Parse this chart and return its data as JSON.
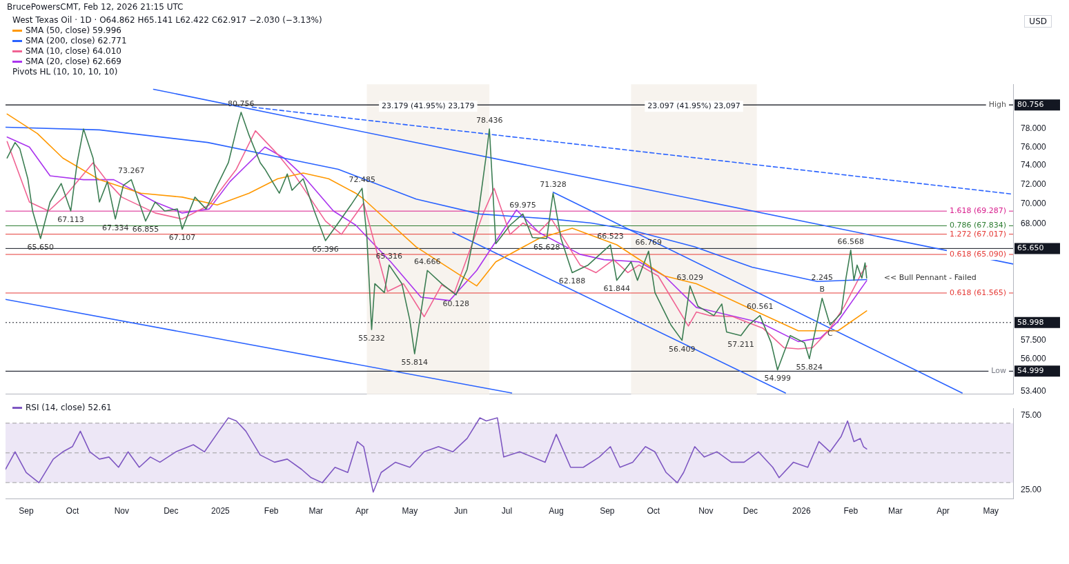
{
  "chart_data": [
    {
      "type": "line",
      "title": "West Texas Oil · 1D · O64.862 H65.141 L62.422 C62.917 −2.030 (−3.13%)",
      "subtitle": "BrucePowersCMT, Feb 12, 2026 21:15 UTC",
      "ylabel": "USD",
      "log": "y",
      "legend": "top left",
      "tick_labels": "y",
      "xlim": [
        "2024-08-20",
        "2026-05-15"
      ],
      "ylim": [
        53.2,
        83.2
      ],
      "yticks": [
        {
          "value": 53.4,
          "label": "53.400"
        },
        {
          "value": 56,
          "label": "56.000"
        },
        {
          "value": 57.5,
          "label": "57.500"
        },
        {
          "value": 68,
          "label": "68.000"
        },
        {
          "value": 70,
          "label": "70.000"
        },
        {
          "value": 72,
          "label": "72.000"
        },
        {
          "value": 74,
          "label": "74.000"
        },
        {
          "value": 76,
          "label": "76.000"
        },
        {
          "value": 78,
          "label": "78.000"
        }
      ],
      "series": [
        {
          "color": "#3b7d52",
          "x": [
            "2024-08-21",
            "2024-08-26",
            "2024-08-29",
            "2024-09-03",
            "2024-09-06",
            "2024-09-11",
            "2024-09-17",
            "2024-09-24",
            "2024-09-30",
            "2024-10-04",
            "2024-10-08",
            "2024-10-14",
            "2024-10-18",
            "2024-10-23",
            "2024-10-28",
            "2024-11-02",
            "2024-11-07",
            "2024-11-16",
            "2024-11-22",
            "2024-11-28",
            "2024-12-06",
            "2024-12-09",
            "2024-12-17",
            "2024-12-24",
            "2024-12-31",
            "2025-01-07",
            "2025-01-13",
            "2025-01-15",
            "2025-01-20",
            "2025-01-27",
            "2025-01-30",
            "2025-02-08",
            "2025-02-13",
            "2025-02-16",
            "2025-02-23",
            "2025-03-02",
            "2025-03-09",
            "2025-03-17",
            "2025-03-25",
            "2025-04-01",
            "2025-04-04",
            "2025-04-07",
            "2025-04-09",
            "2025-04-15",
            "2025-04-18",
            "2025-04-26",
            "2025-05-01",
            "2025-05-04",
            "2025-05-12",
            "2025-05-21",
            "2025-05-30",
            "2025-06-06",
            "2025-06-13",
            "2025-06-18",
            "2025-06-20",
            "2025-06-24",
            "2025-07-03",
            "2025-07-11",
            "2025-07-17",
            "2025-07-26",
            "2025-07-30",
            "2025-08-04",
            "2025-08-11",
            "2025-08-21",
            "2025-09-04",
            "2025-09-08",
            "2025-09-17",
            "2025-09-21",
            "2025-09-28",
            "2025-10-02",
            "2025-10-12",
            "2025-10-19",
            "2025-10-24",
            "2025-10-29",
            "2025-11-08",
            "2025-11-13",
            "2025-11-16",
            "2025-11-25",
            "2025-11-30",
            "2025-12-07",
            "2025-12-14",
            "2025-12-18",
            "2025-12-26",
            "2026-01-04",
            "2026-01-07",
            "2026-01-15",
            "2026-01-20",
            "2026-01-27",
            "2026-01-30",
            "2026-02-02",
            "2026-02-04",
            "2026-02-06",
            "2026-02-09",
            "2026-02-11",
            "2026-02-12"
          ],
          "values": [
            74.8,
            76.5,
            75.8,
            72.6,
            69.3,
            66.6,
            70.2,
            72.1,
            69.3,
            74.3,
            78.0,
            74.8,
            70.2,
            72.3,
            68.5,
            71.9,
            72.5,
            68.3,
            70.2,
            69.3,
            69.5,
            67.5,
            70.7,
            69.5,
            71.9,
            74.3,
            78.6,
            79.9,
            77.3,
            74.3,
            73.6,
            71.1,
            73.1,
            71.4,
            72.6,
            69.3,
            66.4,
            68.1,
            69.9,
            71.6,
            66.8,
            58.4,
            62.4,
            61.6,
            64.1,
            62.4,
            59.2,
            56.4,
            63.6,
            62.4,
            61.4,
            63.7,
            69.0,
            75.1,
            78.0,
            66.1,
            67.9,
            69.0,
            66.7,
            66.6,
            71.1,
            66.6,
            63.4,
            64.1,
            66.0,
            62.7,
            64.4,
            62.7,
            65.4,
            61.6,
            58.8,
            57.5,
            62.2,
            60.4,
            59.6,
            60.6,
            58.2,
            57.9,
            58.8,
            59.6,
            57.3,
            55.1,
            57.9,
            57.3,
            56.0,
            61.1,
            58.8,
            59.8,
            62.9,
            65.5,
            62.7,
            64.1,
            62.9,
            64.3,
            62.917
          ]
        },
        {
          "name": "SMA (50, close) 59.996",
          "color": "#ff9800",
          "x": [
            "2024-08-21",
            "2024-09-09",
            "2024-09-25",
            "2024-10-18",
            "2024-11-13",
            "2024-12-09",
            "2024-12-31",
            "2025-01-20",
            "2025-02-07",
            "2025-02-23",
            "2025-03-11",
            "2025-03-28",
            "2025-04-02",
            "2025-05-05",
            "2025-06-12",
            "2025-06-24",
            "2025-07-21",
            "2025-08-11",
            "2025-09-08",
            "2025-10-08",
            "2025-10-28",
            "2025-12-07",
            "2025-12-31",
            "2026-01-25",
            "2026-02-12"
          ],
          "values": [
            79.7,
            77.5,
            74.8,
            72.5,
            71.1,
            70.7,
            69.9,
            71.1,
            72.6,
            73.2,
            72.6,
            71.1,
            70.5,
            65.8,
            62.2,
            64.4,
            66.6,
            67.6,
            66.0,
            63.1,
            62.4,
            59.8,
            58.3,
            58.3,
            59.996
          ]
        },
        {
          "name": "SMA (200, close) 62.771",
          "color": "#2962ff",
          "x": [
            "2024-08-20",
            "2024-10-18",
            "2024-12-25",
            "2025-01-30",
            "2025-03-17",
            "2025-05-05",
            "2025-06-14",
            "2025-07-29",
            "2025-08-23",
            "2025-09-15",
            "2025-10-27",
            "2025-12-02",
            "2026-01-12",
            "2026-02-12"
          ],
          "values": [
            78.2,
            77.9,
            76.5,
            75.2,
            73.6,
            70.5,
            69.0,
            68.5,
            68.1,
            67.5,
            65.8,
            63.9,
            62.6,
            62.771
          ]
        },
        {
          "name": "SMA (10, close) 64.010",
          "color": "#f06292",
          "x": [
            "2024-08-21",
            "2024-09-04",
            "2024-09-16",
            "2024-09-27",
            "2024-10-14",
            "2024-10-23",
            "2024-11-01",
            "2024-11-22",
            "2024-12-09",
            "2024-12-26",
            "2025-01-12",
            "2025-01-24",
            "2025-02-07",
            "2025-02-18",
            "2025-03-09",
            "2025-03-19",
            "2025-04-02",
            "2025-04-17",
            "2025-04-27",
            "2025-05-10",
            "2025-05-21",
            "2025-05-29",
            "2025-06-16",
            "2025-06-23",
            "2025-07-03",
            "2025-07-11",
            "2025-07-21",
            "2025-07-29",
            "2025-08-16",
            "2025-08-26",
            "2025-09-06",
            "2025-09-15",
            "2025-09-22",
            "2025-10-04",
            "2025-10-23",
            "2025-10-28",
            "2025-11-05",
            "2025-11-20",
            "2025-12-09",
            "2025-12-22",
            "2025-12-31",
            "2026-01-09",
            "2026-01-19",
            "2026-01-29",
            "2026-02-09",
            "2026-02-12"
          ],
          "values": [
            76.6,
            70.2,
            69.3,
            70.9,
            74.3,
            72.3,
            70.7,
            69.1,
            68.5,
            69.9,
            73.6,
            77.8,
            75.2,
            72.9,
            68.3,
            67.0,
            70.1,
            61.7,
            62.4,
            59.5,
            62.3,
            61.6,
            69.0,
            71.6,
            67.0,
            68.1,
            67.2,
            68.5,
            64.1,
            63.4,
            64.6,
            63.4,
            64.1,
            63.1,
            58.7,
            59.9,
            59.6,
            59.5,
            58.5,
            56.9,
            56.8,
            56.9,
            58.3,
            60.4,
            63.4,
            64.01
          ]
        },
        {
          "name": "SMA (20, close) 62.669",
          "color": "#aa33ee",
          "x": [
            "2024-08-21",
            "2024-09-04",
            "2024-09-17",
            "2024-10-08",
            "2024-10-27",
            "2024-11-22",
            "2024-12-09",
            "2024-12-26",
            "2025-01-08",
            "2025-01-30",
            "2025-02-11",
            "2025-02-23",
            "2025-03-14",
            "2025-03-28",
            "2025-04-19",
            "2025-05-08",
            "2025-05-26",
            "2025-06-12",
            "2025-07-07",
            "2025-07-21",
            "2025-08-16",
            "2025-08-31",
            "2025-09-22",
            "2025-10-08",
            "2025-10-28",
            "2025-12-07",
            "2025-12-31",
            "2026-01-14",
            "2026-01-25",
            "2026-02-12"
          ],
          "values": [
            77.1,
            76.0,
            72.9,
            72.5,
            72.5,
            70.2,
            69.1,
            69.5,
            72.3,
            76.0,
            74.8,
            72.9,
            69.3,
            67.9,
            64.4,
            61.2,
            60.9,
            63.6,
            69.4,
            67.2,
            65.1,
            64.6,
            64.4,
            63.1,
            60.3,
            59.0,
            57.4,
            57.7,
            59.1,
            62.669
          ]
        },
        {
          "color": "#2962ff",
          "x": [
            "2024-11-21",
            "2026-05-15"
          ],
          "values": [
            82.6,
            64.2
          ]
        },
        {
          "color": "#2962ff",
          "line_style": "dashed",
          "x": [
            "2025-01-22",
            "2026-05-15"
          ],
          "values": [
            80.5,
            71.0
          ]
        },
        {
          "color": "#2962ff",
          "x": [
            "2024-08-20",
            "2025-07-04"
          ],
          "values": [
            61.0,
            53.3
          ]
        },
        {
          "color": "#2962ff",
          "x": [
            "2025-05-28",
            "2025-12-23"
          ],
          "values": [
            67.2,
            53.3
          ]
        },
        {
          "color": "#2962ff",
          "x": [
            "2025-07-30",
            "2026-04-13"
          ],
          "values": [
            71.2,
            53.3
          ]
        }
      ],
      "ref_lines": [
        {
          "axis": "y",
          "value": 80.756,
          "label": "High",
          "color": "#555555"
        },
        {
          "axis": "y",
          "value": 80.756,
          "label": "80.756"
        },
        {
          "axis": "y",
          "value": 65.65,
          "label": "65.650"
        },
        {
          "axis": "y",
          "value": 58.998,
          "label": "58.998",
          "line_style": "dotted"
        },
        {
          "axis": "y",
          "value": 54.999,
          "label": "Low",
          "color": "#787b86"
        },
        {
          "axis": "y",
          "value": 54.999,
          "label": "54.999"
        },
        {
          "axis": "y",
          "value": 69.287,
          "label": "1.618 (69.287)",
          "color": "#d81b8c"
        },
        {
          "axis": "y",
          "value": 67.834,
          "label": "0.786 (67.834)",
          "color": "#2e7d32"
        },
        {
          "axis": "y",
          "value": 67.017,
          "label": "1.272 (67.017)",
          "color": "#e53935"
        },
        {
          "axis": "y",
          "value": 65.09,
          "label": "0.618 (65.090)",
          "color": "#e53935"
        },
        {
          "axis": "y",
          "value": 61.565,
          "label": "0.618 (61.565)",
          "color": "#e53935"
        }
      ],
      "bands": [
        {
          "axis": "x",
          "from": "2025-04-04",
          "to": "2025-06-20",
          "label": "23.179 (41.95%) 23,179",
          "color": "#f7f3ee"
        },
        {
          "axis": "x",
          "from": "2025-09-17",
          "to": "2025-12-05",
          "label": "23.097 (41.95%) 23,097",
          "color": "#f7f3ee"
        }
      ],
      "annotations": [
        "Pivots HL (10, 10, 10, 10)",
        {
          "text": "80.756",
          "x": "2025-01-15",
          "y": 79.9
        },
        {
          "text": "73.267",
          "x": "2024-11-07",
          "y": 72.5
        },
        {
          "text": "67.113",
          "x": "2024-09-30",
          "y": 69.3
        },
        {
          "text": "65.650",
          "x": "2024-09-11",
          "y": 66.6
        },
        {
          "text": "67.334",
          "x": "2024-10-28",
          "y": 68.5
        },
        {
          "text": "66.855",
          "x": "2024-11-16",
          "y": 68.3
        },
        {
          "text": "67.107",
          "x": "2024-12-09",
          "y": 67.5
        },
        {
          "text": "65.396",
          "x": "2025-03-09",
          "y": 66.4
        },
        {
          "text": "72.485",
          "x": "2025-04-01",
          "y": 71.6
        },
        {
          "text": "65.316",
          "x": "2025-04-18",
          "y": 64.1
        },
        {
          "text": "64.666",
          "x": "2025-05-12",
          "y": 63.6
        },
        {
          "text": "55.232",
          "x": "2025-04-07",
          "y": 58.4
        },
        {
          "text": "55.814",
          "x": "2025-05-04",
          "y": 56.4
        },
        {
          "text": "60.128",
          "x": "2025-05-30",
          "y": 61.4
        },
        {
          "text": "78.436",
          "x": "2025-06-20",
          "y": 78.0
        },
        {
          "text": "71.328",
          "x": "2025-07-30",
          "y": 71.1
        },
        {
          "text": "69.975",
          "x": "2025-07-11",
          "y": 69.0
        },
        {
          "text": "65.628",
          "x": "2025-07-26",
          "y": 66.6
        },
        {
          "text": "66.523",
          "x": "2025-09-04",
          "y": 66.0
        },
        {
          "text": "66.769",
          "x": "2025-09-28",
          "y": 65.4
        },
        {
          "text": "62.188",
          "x": "2025-08-11",
          "y": 63.4
        },
        {
          "text": "61.844",
          "x": "2025-09-08",
          "y": 62.7
        },
        {
          "text": "63.029",
          "x": "2025-10-24",
          "y": 62.2
        },
        {
          "text": "56.409",
          "x": "2025-10-19",
          "y": 57.5
        },
        {
          "text": "60.561",
          "x": "2025-12-07",
          "y": 59.6
        },
        {
          "text": "57.211",
          "x": "2025-11-25",
          "y": 57.9
        },
        {
          "text": "54.999",
          "x": "2025-12-18",
          "y": 55.1
        },
        {
          "text": "55.824",
          "x": "2026-01-07",
          "y": 56.0
        },
        {
          "text": "66.568",
          "x": "2026-02-02",
          "y": 65.5
        },
        {
          "text": "B",
          "x": "2026-01-15",
          "y": 61.1
        },
        {
          "text": "2.245",
          "x": "2026-01-15",
          "y": 61.1
        },
        {
          "text": "C",
          "x": "2026-01-20",
          "y": 58.8
        },
        {
          "text": "<< Bull Pennant - Failed",
          "x": "2026-02-12",
          "y": 62.917
        }
      ]
    },
    {
      "type": "line",
      "legend": "top left",
      "xlim": [
        "2024-08-20",
        "2026-05-15"
      ],
      "xticks": [
        {
          "value": "2024-09-02",
          "label": "Sep"
        },
        {
          "value": "2024-10-01",
          "label": "Oct"
        },
        {
          "value": "2024-11-01",
          "label": "Nov"
        },
        {
          "value": "2024-12-02",
          "label": "Dec"
        },
        {
          "value": "2025-01-02",
          "label": "2025"
        },
        {
          "value": "2025-02-03",
          "label": "Feb"
        },
        {
          "value": "2025-03-03",
          "label": "Mar"
        },
        {
          "value": "2025-04-01",
          "label": "Apr"
        },
        {
          "value": "2025-05-01",
          "label": "May"
        },
        {
          "value": "2025-06-02",
          "label": "Jun"
        },
        {
          "value": "2025-07-01",
          "label": "Jul"
        },
        {
          "value": "2025-08-01",
          "label": "Aug"
        },
        {
          "value": "2025-09-02",
          "label": "Sep"
        },
        {
          "value": "2025-10-01",
          "label": "Oct"
        },
        {
          "value": "2025-11-03",
          "label": "Nov"
        },
        {
          "value": "2025-12-01",
          "label": "Dec"
        },
        {
          "value": "2026-01-02",
          "label": "2026"
        },
        {
          "value": "2026-02-02",
          "label": "Feb"
        },
        {
          "value": "2026-03-02",
          "label": "Mar"
        },
        {
          "value": "2026-04-01",
          "label": "Apr"
        },
        {
          "value": "2026-05-01",
          "label": "May"
        }
      ],
      "ylim": [
        19,
        80
      ],
      "yticks": [
        {
          "value": 25,
          "label": "25.00"
        },
        {
          "value": 75,
          "label": "75.00"
        }
      ],
      "series": [
        {
          "name": "RSI (14, close) 52.61",
          "color": "#7e57c2",
          "x": [
            "2024-08-20",
            "2024-08-26",
            "2024-09-02",
            "2024-09-10",
            "2024-09-19",
            "2024-09-25",
            "2024-10-01",
            "2024-10-06",
            "2024-10-12",
            "2024-10-18",
            "2024-10-24",
            "2024-10-30",
            "2024-11-05",
            "2024-11-12",
            "2024-11-19",
            "2024-11-25",
            "2024-12-05",
            "2024-12-16",
            "2024-12-23",
            "2025-01-01",
            "2025-01-07",
            "2025-01-12",
            "2025-01-18",
            "2025-01-27",
            "2025-02-05",
            "2025-02-13",
            "2025-02-22",
            "2025-02-28",
            "2025-03-07",
            "2025-03-15",
            "2025-03-23",
            "2025-03-29",
            "2025-04-02",
            "2025-04-08",
            "2025-04-13",
            "2025-04-22",
            "2025-05-01",
            "2025-05-10",
            "2025-05-19",
            "2025-05-28",
            "2025-06-06",
            "2025-06-14",
            "2025-06-18",
            "2025-06-25",
            "2025-06-29",
            "2025-07-09",
            "2025-07-17",
            "2025-07-25",
            "2025-08-01",
            "2025-08-10",
            "2025-08-18",
            "2025-08-28",
            "2025-09-04",
            "2025-09-10",
            "2025-09-18",
            "2025-09-26",
            "2025-10-02",
            "2025-10-09",
            "2025-10-16",
            "2025-10-20",
            "2025-10-27",
            "2025-11-02",
            "2025-11-10",
            "2025-11-19",
            "2025-11-27",
            "2025-12-06",
            "2025-12-15",
            "2025-12-19",
            "2025-12-28",
            "2026-01-06",
            "2026-01-13",
            "2026-01-20",
            "2026-01-27",
            "2026-01-31",
            "2026-02-04",
            "2026-02-08",
            "2026-02-10",
            "2026-02-12"
          ],
          "values": [
            38.9,
            50.7,
            36.8,
            29.9,
            45.8,
            50.7,
            54.2,
            64.6,
            50.7,
            45.8,
            47.2,
            40.3,
            50.7,
            40.3,
            47.2,
            43.7,
            50.7,
            55.5,
            50.7,
            64.6,
            73.6,
            71.5,
            64.6,
            48.6,
            43.7,
            45.8,
            38.9,
            33.3,
            29.9,
            40.3,
            36.8,
            57.6,
            54.2,
            23.6,
            36.8,
            43.7,
            40.3,
            50.7,
            54.2,
            50.7,
            59.7,
            73.6,
            71.5,
            73.6,
            47.2,
            50.7,
            47.2,
            43.7,
            62.5,
            40.3,
            40.3,
            47.2,
            54.2,
            40.3,
            43.7,
            54.2,
            50.7,
            36.8,
            29.9,
            36.8,
            54.2,
            47.2,
            50.7,
            43.7,
            43.7,
            50.7,
            40.3,
            33.3,
            43.7,
            40.3,
            57.6,
            50.7,
            61.1,
            71.5,
            57.6,
            59.7,
            54.2,
            52.61
          ]
        }
      ],
      "ref_lines": [
        {
          "axis": "y",
          "value": 70,
          "color": "#9e9e9e",
          "line_style": "dashed"
        },
        {
          "axis": "y",
          "value": 50,
          "color": "#9e9e9e",
          "line_style": "dashed"
        },
        {
          "axis": "y",
          "value": 30,
          "color": "#9e9e9e",
          "line_style": "dashed"
        }
      ],
      "bands": [
        {
          "axis": "y",
          "from": 30,
          "to": 70,
          "color": "#ede7f6"
        }
      ]
    }
  ]
}
